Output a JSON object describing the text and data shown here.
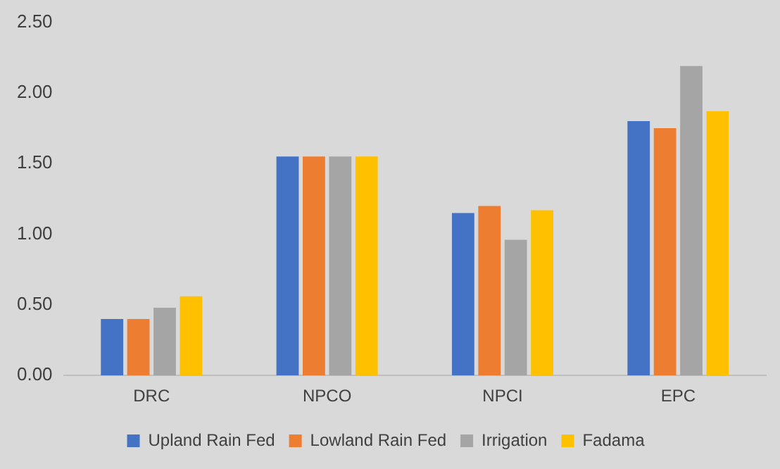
{
  "chart_data": {
    "type": "bar",
    "categories": [
      "DRC",
      "NPCO",
      "NPCI",
      "EPC"
    ],
    "series": [
      {
        "name": "Upland Rain Fed",
        "color": "#4472c4",
        "values": [
          0.4,
          1.55,
          1.15,
          1.8
        ]
      },
      {
        "name": "Lowland Rain Fed",
        "color": "#ed7d31",
        "values": [
          0.4,
          1.55,
          1.2,
          1.75
        ]
      },
      {
        "name": "Irrigation",
        "color": "#a5a5a5",
        "values": [
          0.48,
          1.55,
          0.96,
          2.19
        ]
      },
      {
        "name": "Fadama",
        "color": "#ffc000",
        "values": [
          0.56,
          1.55,
          1.17,
          1.87
        ]
      }
    ],
    "ylim": [
      0,
      2.5
    ],
    "yticks": [
      {
        "value": 0,
        "label": "0.00"
      },
      {
        "value": 0.5,
        "label": "0.50"
      },
      {
        "value": 1,
        "label": "1.00"
      },
      {
        "value": 1.5,
        "label": "1.50"
      },
      {
        "value": 2,
        "label": "2.00"
      },
      {
        "value": 2.5,
        "label": "2.50"
      }
    ],
    "grid": false,
    "legend": "bottom"
  }
}
